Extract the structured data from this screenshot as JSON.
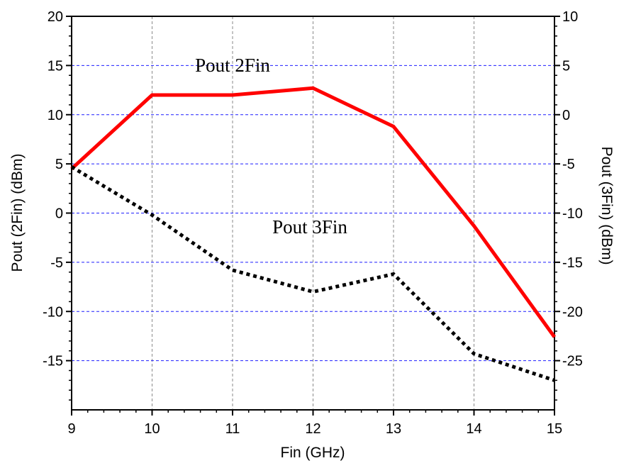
{
  "chart_data": {
    "type": "line",
    "xlabel": "Fin (GHz)",
    "ylabel_left": "Pout (2Fin) (dBm)",
    "ylabel_right": "Pout (3Fin) (dBm)",
    "xlim": [
      9,
      15
    ],
    "ylim_left": [
      -20,
      20
    ],
    "ylim_right": [
      -30,
      10
    ],
    "x_ticks": [
      "9",
      "10",
      "11",
      "12",
      "13",
      "14",
      "15"
    ],
    "y_ticks_left": [
      "20",
      "15",
      "10",
      "5",
      "0",
      "-5",
      "-10",
      "-15"
    ],
    "y_ticks_right": [
      "10",
      "5",
      "0",
      "-5",
      "-10",
      "-15",
      "-20",
      "-25"
    ],
    "grid": true,
    "series": [
      {
        "name": "Pout 2Fin",
        "axis": "left",
        "style": "solid",
        "color": "#ff0000",
        "x": [
          9,
          10,
          11,
          12,
          13,
          14,
          15
        ],
        "values": [
          4.5,
          12,
          12,
          12.7,
          8.8,
          -1.3,
          -12.6
        ]
      },
      {
        "name": "Pout 3Fin",
        "axis": "right",
        "style": "dotted",
        "color": "#000000",
        "x": [
          9,
          10,
          11,
          12,
          13,
          14,
          15
        ],
        "values": [
          -5.3,
          -10.2,
          -15.8,
          -18,
          -16.2,
          -24.3,
          -27
        ]
      }
    ],
    "annotations": [
      "Pout 2Fin",
      "Pout 3Fin"
    ]
  }
}
